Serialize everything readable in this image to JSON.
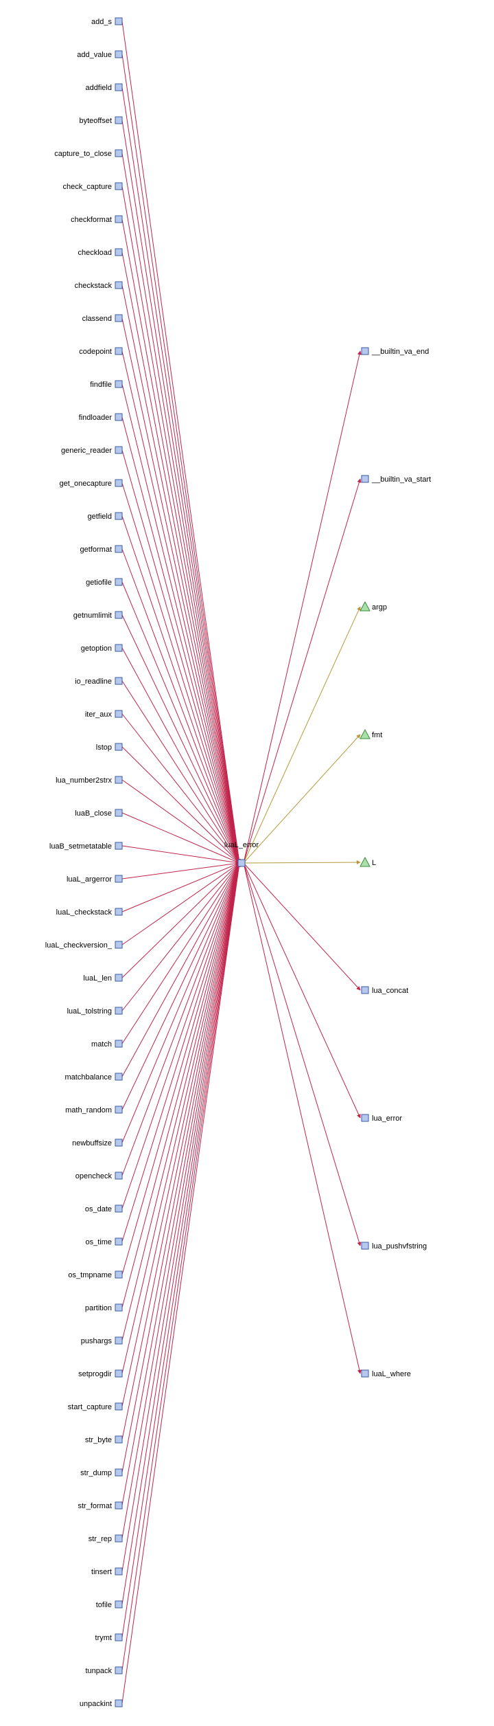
{
  "center": {
    "name": "luaL_error"
  },
  "callers": [
    "add_s",
    "add_value",
    "addfield",
    "byteoffset",
    "capture_to_close",
    "check_capture",
    "checkformat",
    "checkload",
    "checkstack",
    "classend",
    "codepoint",
    "findfile",
    "findloader",
    "generic_reader",
    "get_onecapture",
    "getfield",
    "getformat",
    "getiofile",
    "getnumlimit",
    "getoption",
    "io_readline",
    "iter_aux",
    "lstop",
    "lua_number2strx",
    "luaB_close",
    "luaB_setmetatable",
    "luaL_argerror",
    "luaL_checkstack",
    "luaL_checkversion_",
    "luaL_len",
    "luaL_tolstring",
    "match",
    "matchbalance",
    "math_random",
    "newbuffsize",
    "opencheck",
    "os_date",
    "os_time",
    "os_tmpname",
    "partition",
    "pushargs",
    "setprogdir",
    "start_capture",
    "str_byte",
    "str_dump",
    "str_format",
    "str_rep",
    "tinsert",
    "tofile",
    "trymt",
    "tunpack",
    "unpackint"
  ],
  "callees": [
    {
      "name": "__builtin_va_end",
      "kind": "function"
    },
    {
      "name": "__builtin_va_start",
      "kind": "function"
    },
    {
      "name": "argp",
      "kind": "variable"
    },
    {
      "name": "fmt",
      "kind": "variable"
    },
    {
      "name": "L",
      "kind": "variable"
    },
    {
      "name": "lua_concat",
      "kind": "function"
    },
    {
      "name": "lua_error",
      "kind": "function"
    },
    {
      "name": "lua_pushvfstring",
      "kind": "function"
    },
    {
      "name": "luaL_where",
      "kind": "function"
    }
  ],
  "colors": {
    "function_node_fill": "#b6c8ee",
    "function_node_stroke": "#3b5aa6",
    "variable_node_fill": "#a9dfa9",
    "variable_node_stroke": "#3c8c3c",
    "call_edge": "#c0244a",
    "variable_edge": "#b59a3a"
  }
}
